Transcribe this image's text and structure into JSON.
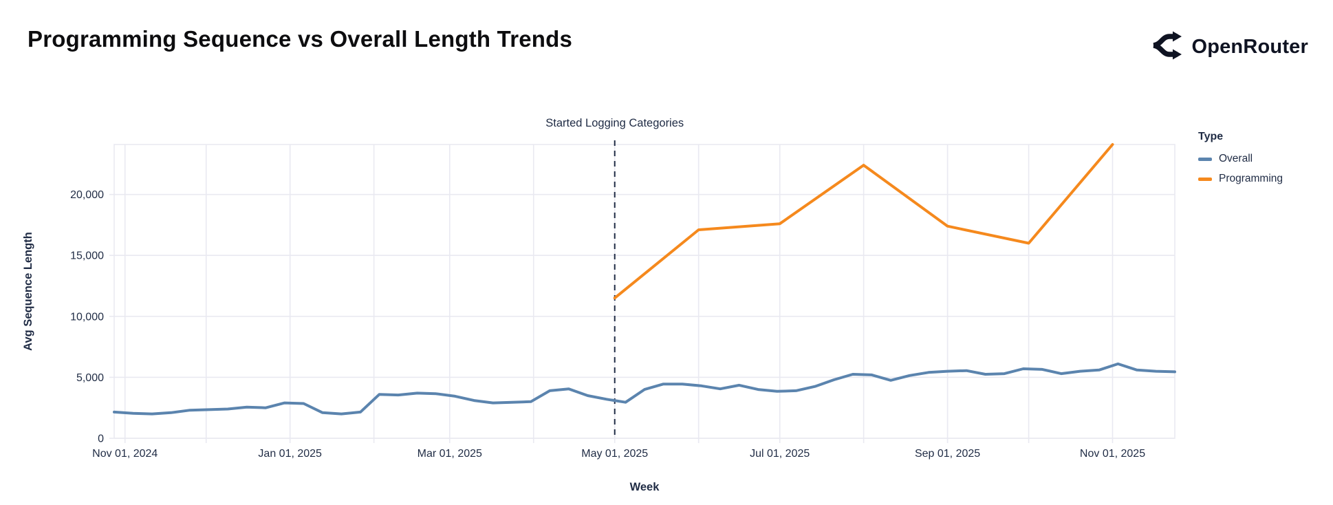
{
  "header": {
    "title": "Programming Sequence vs Overall Length Trends",
    "brand": "OpenRouter"
  },
  "colors": {
    "overall": "#5b84ae",
    "programming": "#f5891d",
    "text": "#1f2b44",
    "grid": "#e9e9f1",
    "rule": "#1f2b44",
    "background": "#ffffff"
  },
  "annotation": {
    "label": "Started Logging Categories",
    "date": "2025-05-01"
  },
  "legend": {
    "title": "Type",
    "items": [
      {
        "label": "Overall",
        "color": "#5b84ae"
      },
      {
        "label": "Programming",
        "color": "#f5891d"
      }
    ]
  },
  "chart_data": {
    "type": "line",
    "title": "Programming Sequence vs Overall Length Trends",
    "xlabel": "Week",
    "ylabel": "Avg Sequence Length",
    "x_domain": [
      "2024-10-28",
      "2025-11-24"
    ],
    "ylim": [
      0,
      24100
    ],
    "y_ticks": [
      0,
      5000,
      10000,
      15000,
      20000
    ],
    "x_ticks": [
      {
        "date": "2024-11-01",
        "label": "Nov 01, 2024"
      },
      {
        "date": "2025-01-01",
        "label": "Jan 01, 2025"
      },
      {
        "date": "2025-03-01",
        "label": "Mar 01, 2025"
      },
      {
        "date": "2025-05-01",
        "label": "May 01, 2025"
      },
      {
        "date": "2025-07-01",
        "label": "Jul 01, 2025"
      },
      {
        "date": "2025-09-01",
        "label": "Sep 01, 2025"
      },
      {
        "date": "2025-11-01",
        "label": "Nov 01, 2025"
      }
    ],
    "x_gridlines": [
      "2024-11-01",
      "2024-12-01",
      "2025-01-01",
      "2025-02-01",
      "2025-03-01",
      "2025-04-01",
      "2025-05-01",
      "2025-06-01",
      "2025-07-01",
      "2025-08-01",
      "2025-09-01",
      "2025-10-01",
      "2025-11-01"
    ],
    "grid": true,
    "legend_position": "right",
    "series": [
      {
        "name": "Overall",
        "color": "#5b84ae",
        "x_start": "2024-10-28",
        "x_step_days": 7,
        "values": [
          2150,
          2050,
          2000,
          2100,
          2300,
          2350,
          2400,
          2550,
          2500,
          2900,
          2850,
          2100,
          2000,
          2150,
          3600,
          3550,
          3700,
          3650,
          3450,
          3100,
          2900,
          2950,
          3000,
          3900,
          4050,
          3500,
          3200,
          2950,
          4000,
          4450,
          4450,
          4300,
          4050,
          4350,
          4000,
          3850,
          3900,
          4250,
          4800,
          5250,
          5200,
          4750,
          5150,
          5400,
          5500,
          5550,
          5250,
          5300,
          5700,
          5650,
          5300,
          5500,
          5600,
          6100,
          5600,
          5500,
          5450
        ]
      },
      {
        "name": "Programming",
        "color": "#f5891d",
        "x": [
          "2025-05-01",
          "2025-06-01",
          "2025-07-01",
          "2025-08-01",
          "2025-09-01",
          "2025-10-01",
          "2025-11-01"
        ],
        "values": [
          11500,
          17100,
          17600,
          22400,
          17400,
          16000,
          24100
        ]
      }
    ]
  }
}
